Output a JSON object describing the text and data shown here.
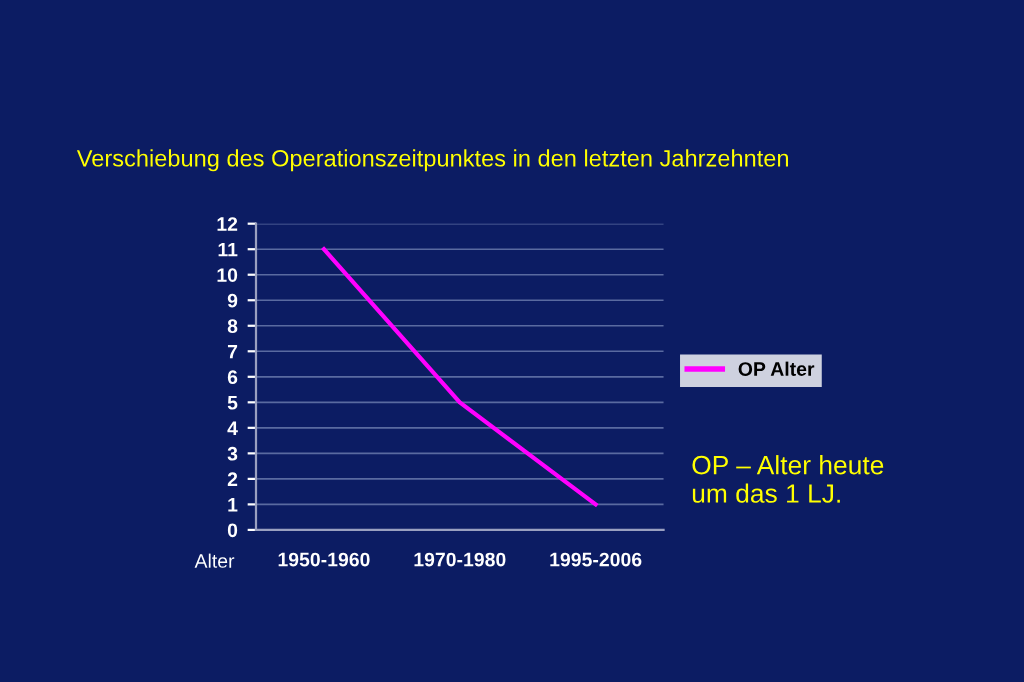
{
  "chart_data": {
    "type": "line",
    "title": "Verschiebung des Operationszeitpunktes in den letzten Jahrzehnten",
    "xlabel": "Alter",
    "categories": [
      "1950-1960",
      "1970-1980",
      "1995-2006"
    ],
    "series": [
      {
        "name": "OP Alter",
        "color": "#ff00ff",
        "values": [
          11,
          5,
          1
        ]
      }
    ],
    "ylim": [
      0,
      12
    ],
    "yticks": [
      0,
      1,
      2,
      3,
      4,
      5,
      6,
      7,
      8,
      9,
      10,
      11,
      12
    ],
    "grid": "y",
    "legend": "right",
    "marker": "none",
    "line_style": "solid",
    "annotations": [
      "OP – Alter heute\num das 1 LJ."
    ]
  }
}
